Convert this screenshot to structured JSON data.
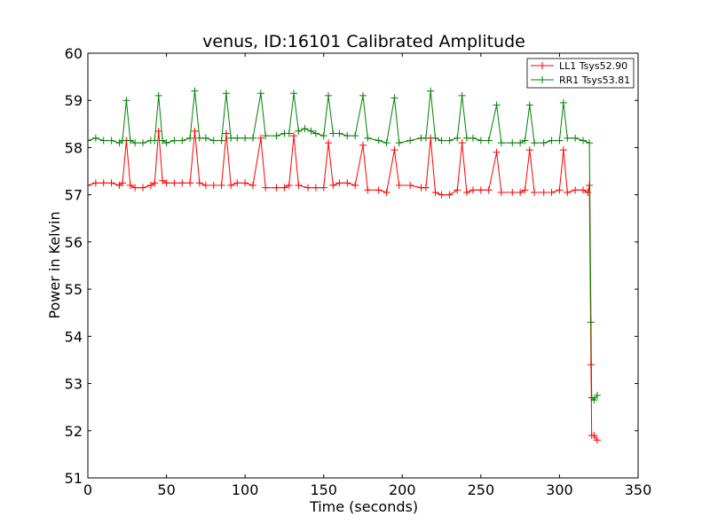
{
  "chart_data": {
    "type": "line",
    "title": "venus, ID:16101 Calibrated Amplitude",
    "xlabel": "Time (seconds)",
    "ylabel": "Power in Kelvin",
    "xlim": [
      0,
      350
    ],
    "ylim": [
      51,
      60
    ],
    "xticks": [
      0,
      50,
      100,
      150,
      200,
      250,
      300,
      350
    ],
    "yticks": [
      51,
      52,
      53,
      54,
      55,
      56,
      57,
      58,
      59,
      60
    ],
    "grid": false,
    "legend_position": "top-right",
    "marker": "+",
    "series": [
      {
        "name": "LL1 Tsys52.90",
        "color": "#ff0000",
        "points": [
          [
            0,
            57.2
          ],
          [
            5,
            57.25
          ],
          [
            10,
            57.25
          ],
          [
            15,
            57.25
          ],
          [
            20,
            57.2
          ],
          [
            22,
            57.25
          ],
          [
            24.5,
            58.15
          ],
          [
            27,
            57.2
          ],
          [
            30,
            57.15
          ],
          [
            35,
            57.15
          ],
          [
            40,
            57.2
          ],
          [
            42.5,
            57.25
          ],
          [
            45,
            58.35
          ],
          [
            47.5,
            57.3
          ],
          [
            50,
            57.25
          ],
          [
            55,
            57.25
          ],
          [
            60,
            57.25
          ],
          [
            65,
            57.25
          ],
          [
            68,
            58.35
          ],
          [
            71,
            57.25
          ],
          [
            75,
            57.2
          ],
          [
            80,
            57.2
          ],
          [
            85,
            57.2
          ],
          [
            88,
            58.3
          ],
          [
            91,
            57.2
          ],
          [
            95,
            57.25
          ],
          [
            100,
            57.25
          ],
          [
            105,
            57.2
          ],
          [
            110,
            58.2
          ],
          [
            113,
            57.15
          ],
          [
            120,
            57.15
          ],
          [
            125,
            57.15
          ],
          [
            128,
            57.2
          ],
          [
            131,
            58.25
          ],
          [
            134,
            57.2
          ],
          [
            140,
            57.15
          ],
          [
            145,
            57.15
          ],
          [
            150,
            57.15
          ],
          [
            153,
            58.1
          ],
          [
            156,
            57.2
          ],
          [
            160,
            57.25
          ],
          [
            165,
            57.25
          ],
          [
            170,
            57.2
          ],
          [
            175,
            58.05
          ],
          [
            178,
            57.1
          ],
          [
            185,
            57.1
          ],
          [
            190,
            57.05
          ],
          [
            195,
            57.95
          ],
          [
            198,
            57.2
          ],
          [
            205,
            57.2
          ],
          [
            212,
            57.15
          ],
          [
            215,
            57.15
          ],
          [
            218,
            58.2
          ],
          [
            221,
            57.05
          ],
          [
            225,
            57.0
          ],
          [
            230,
            57.0
          ],
          [
            235,
            57.1
          ],
          [
            238,
            58.1
          ],
          [
            241,
            57.05
          ],
          [
            245,
            57.1
          ],
          [
            250,
            57.1
          ],
          [
            255,
            57.1
          ],
          [
            260,
            57.9
          ],
          [
            263,
            57.05
          ],
          [
            270,
            57.05
          ],
          [
            275,
            57.05
          ],
          [
            278,
            57.1
          ],
          [
            281,
            57.95
          ],
          [
            284,
            57.05
          ],
          [
            290,
            57.05
          ],
          [
            295,
            57.05
          ],
          [
            300,
            57.1
          ],
          [
            302.5,
            57.95
          ],
          [
            305,
            57.05
          ],
          [
            310,
            57.1
          ],
          [
            315,
            57.1
          ],
          [
            318,
            57.05
          ],
          [
            319,
            57.2
          ],
          [
            320,
            53.4
          ],
          [
            320.5,
            51.9
          ],
          [
            322,
            51.9
          ],
          [
            324,
            51.8
          ]
        ]
      },
      {
        "name": "RR1 Tsys53.81",
        "color": "#008000",
        "points": [
          [
            0,
            58.15
          ],
          [
            5,
            58.2
          ],
          [
            10,
            58.15
          ],
          [
            15,
            58.15
          ],
          [
            20,
            58.1
          ],
          [
            22,
            58.15
          ],
          [
            24.5,
            59.0
          ],
          [
            27,
            58.15
          ],
          [
            30,
            58.1
          ],
          [
            35,
            58.1
          ],
          [
            40,
            58.15
          ],
          [
            42.5,
            58.15
          ],
          [
            45,
            59.1
          ],
          [
            47.5,
            58.15
          ],
          [
            50,
            58.1
          ],
          [
            55,
            58.15
          ],
          [
            60,
            58.15
          ],
          [
            65,
            58.2
          ],
          [
            68,
            59.2
          ],
          [
            71,
            58.2
          ],
          [
            75,
            58.2
          ],
          [
            80,
            58.15
          ],
          [
            85,
            58.15
          ],
          [
            88,
            59.15
          ],
          [
            91,
            58.2
          ],
          [
            95,
            58.2
          ],
          [
            100,
            58.2
          ],
          [
            105,
            58.2
          ],
          [
            110,
            59.15
          ],
          [
            113,
            58.25
          ],
          [
            120,
            58.25
          ],
          [
            125,
            58.3
          ],
          [
            128,
            58.3
          ],
          [
            131,
            59.15
          ],
          [
            134,
            58.35
          ],
          [
            138,
            58.4
          ],
          [
            142,
            58.35
          ],
          [
            145,
            58.3
          ],
          [
            150,
            58.25
          ],
          [
            153,
            59.1
          ],
          [
            156,
            58.3
          ],
          [
            160,
            58.3
          ],
          [
            165,
            58.25
          ],
          [
            170,
            58.25
          ],
          [
            175,
            59.1
          ],
          [
            178,
            58.2
          ],
          [
            185,
            58.15
          ],
          [
            190,
            58.1
          ],
          [
            195,
            59.05
          ],
          [
            198,
            58.1
          ],
          [
            205,
            58.15
          ],
          [
            212,
            58.2
          ],
          [
            215,
            58.2
          ],
          [
            218,
            59.2
          ],
          [
            221,
            58.2
          ],
          [
            225,
            58.15
          ],
          [
            230,
            58.15
          ],
          [
            235,
            58.2
          ],
          [
            238,
            59.1
          ],
          [
            241,
            58.2
          ],
          [
            245,
            58.2
          ],
          [
            250,
            58.15
          ],
          [
            255,
            58.15
          ],
          [
            260,
            58.9
          ],
          [
            263,
            58.1
          ],
          [
            270,
            58.1
          ],
          [
            275,
            58.1
          ],
          [
            278,
            58.15
          ],
          [
            281,
            58.9
          ],
          [
            284,
            58.1
          ],
          [
            290,
            58.1
          ],
          [
            295,
            58.15
          ],
          [
            300,
            58.15
          ],
          [
            302.5,
            58.95
          ],
          [
            305,
            58.2
          ],
          [
            310,
            58.2
          ],
          [
            315,
            58.15
          ],
          [
            319,
            58.1
          ],
          [
            320,
            54.3
          ],
          [
            320.5,
            52.7
          ],
          [
            322,
            52.65
          ],
          [
            324,
            52.75
          ]
        ]
      }
    ]
  }
}
